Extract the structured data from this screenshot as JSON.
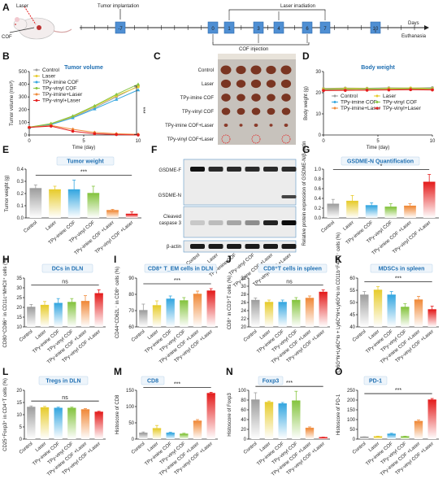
{
  "colors": {
    "control": "#9e9e9e",
    "laser": "#e7cc2e",
    "imine": "#36a7e0",
    "vinyl": "#86c440",
    "imine_laser": "#f08a3a",
    "vinyl_laser": "#e41d1d",
    "title_blue": "#1f6fb2"
  },
  "panels": {
    "A": {
      "label": "A",
      "mouse_text": [
        "Laser",
        "COF"
      ],
      "timeline_days": [
        "-7",
        "0",
        "1",
        "3",
        "4",
        "6",
        "7",
        "10"
      ],
      "tumor_implantation": "Tumor implantation",
      "laser_irradiation": "Laser irradiation",
      "cof_injection": "COF injection",
      "days": "Days",
      "euthanasia": "Euthanasia"
    },
    "B": {
      "label": "B"
    },
    "C": {
      "label": "C",
      "rows": [
        "Control",
        "Laser",
        "TPy-imine COF",
        "TPy-vinyl COF",
        "TPy-imine COF+Laser",
        "TPy-vinyl COF+Laser"
      ]
    },
    "D": {
      "label": "D"
    },
    "E": {
      "label": "E"
    },
    "F": {
      "label": "F",
      "bands": [
        "GSDME-F",
        "GSDME-N",
        "Cleaved caspase 3",
        "β-actin"
      ],
      "lanes": [
        "Control",
        "Laser",
        "TPy-imine COF",
        "TPy-vinyl COF",
        "TPy-imine COF +Laser",
        "TPy-vinyl COF +Laser"
      ]
    },
    "G": {
      "label": "G"
    },
    "H": {
      "label": "H"
    },
    "I": {
      "label": "I"
    },
    "J": {
      "label": "J"
    },
    "K": {
      "label": "K"
    },
    "L": {
      "label": "L"
    },
    "M": {
      "label": "M"
    },
    "N": {
      "label": "N"
    },
    "O": {
      "label": "O"
    }
  },
  "chart_data": [
    {
      "panel": "B",
      "type": "line",
      "title": "Tumor volume",
      "xlabel": "Time (day)",
      "ylabel": "Tumor volume (mm³)",
      "xlim": [
        0,
        10
      ],
      "ylim": [
        0,
        500
      ],
      "xticks": [
        "0",
        "5",
        "10"
      ],
      "yticks": [
        "0",
        "100",
        "200",
        "300",
        "400",
        "500"
      ],
      "x": [
        0,
        2,
        4,
        6,
        8,
        10
      ],
      "legend": [
        "Control",
        "Laser",
        "TPy-imine COF",
        "TPy-vinyl COF",
        "TPy-imine+Laser",
        "TPy-vinyl+Laser"
      ],
      "series": [
        {
          "name": "Control",
          "values": [
            60,
            85,
            140,
            215,
            300,
            385
          ]
        },
        {
          "name": "Laser",
          "values": [
            60,
            88,
            145,
            225,
            310,
            380
          ]
        },
        {
          "name": "TPy-imine COF",
          "values": [
            58,
            82,
            135,
            205,
            280,
            355
          ]
        },
        {
          "name": "TPy-vinyl COF",
          "values": [
            62,
            90,
            150,
            230,
            320,
            400
          ]
        },
        {
          "name": "TPy-imine+Laser",
          "values": [
            60,
            75,
            45,
            20,
            10,
            5
          ]
        },
        {
          "name": "TPy-vinyl+Laser",
          "values": [
            60,
            70,
            30,
            10,
            3,
            0
          ]
        }
      ],
      "annotation": "***"
    },
    {
      "panel": "D",
      "type": "line",
      "title": "Body weight",
      "xlabel": "Time (day)",
      "ylabel": "Body weight (g)",
      "xlim": [
        0,
        10
      ],
      "ylim": [
        0,
        30
      ],
      "xticks": [
        "0",
        "5",
        "10"
      ],
      "yticks": [
        "0",
        "10",
        "20",
        "30"
      ],
      "x": [
        0,
        2,
        4,
        6,
        8,
        10
      ],
      "legend": [
        "Control",
        "Laser",
        "TPy-imine COF",
        "TPy-vinyl COF",
        "TPy-imine+Laser",
        "TPy-vinyl+Laser"
      ],
      "series": [
        {
          "name": "Control",
          "values": [
            22,
            22.2,
            22.1,
            22.3,
            22.2,
            22.4
          ]
        },
        {
          "name": "Laser",
          "values": [
            21.8,
            22,
            22,
            22.1,
            22.2,
            22.1
          ]
        },
        {
          "name": "TPy-imine COF",
          "values": [
            21.5,
            21.7,
            21.8,
            21.9,
            21.8,
            22
          ]
        },
        {
          "name": "TPy-vinyl COF",
          "values": [
            21.7,
            21.8,
            21.7,
            21.9,
            22,
            21.9
          ]
        },
        {
          "name": "TPy-imine+Laser",
          "values": [
            21.2,
            21.3,
            21.2,
            21.5,
            21.6,
            21.5
          ]
        },
        {
          "name": "TPy-vinyl+Laser",
          "values": [
            21,
            21.1,
            21.2,
            21.3,
            21.4,
            21.3
          ]
        }
      ]
    },
    {
      "panel": "E",
      "type": "bar",
      "title": "Tumor weight",
      "ylabel": "Tumor weight (g)",
      "categories": [
        "Control",
        "Laser",
        "TPy-imine COF",
        "TPy-vinyl COF",
        "TPy-imine COF +Laser",
        "TPy-vinyl COF +Laser"
      ],
      "values": [
        0.24,
        0.23,
        0.23,
        0.2,
        0.06,
        0.03
      ],
      "errors": [
        0.03,
        0.03,
        0.08,
        0.06,
        0.01,
        0.02
      ],
      "ylim": [
        0,
        0.4
      ],
      "yticks": [
        "0.0",
        "0.1",
        "0.2",
        "0.3",
        "0.4"
      ],
      "annotation": "***"
    },
    {
      "panel": "G",
      "type": "bar",
      "title": "GSDME-N Quantification",
      "ylabel": "Relative protein expression of GSDME-N/β-actin",
      "categories": [
        "Control",
        "Laser",
        "TPy-imine COF",
        "TPy-vinyl COF",
        "TPy-imine COF +Laser",
        "TPy-vinyl COF +Laser"
      ],
      "values": [
        0.28,
        0.34,
        0.25,
        0.22,
        0.24,
        0.73
      ],
      "errors": [
        0.1,
        0.12,
        0.06,
        0.07,
        0.05,
        0.16
      ],
      "ylim": [
        0,
        1.0
      ],
      "yticks": [
        "0.0",
        "0.2",
        "0.4",
        "0.6",
        "0.8",
        "1.0"
      ],
      "annotation": "*"
    },
    {
      "panel": "H",
      "type": "bar",
      "title": "DCs in DLN",
      "ylabel": "CD80⁺CD86⁺ in CD11c⁺MHCII⁺ cells (%)",
      "categories": [
        "Control",
        "Laser",
        "TPy-imine COF",
        "TPy-vinyl COF",
        "TPy-imine COF +Laser",
        "TPy-vinyl COF +Laser"
      ],
      "values": [
        20,
        21,
        22,
        22.5,
        23,
        27
      ],
      "errors": [
        1.5,
        2,
        2.5,
        2,
        3,
        2
      ],
      "ylim": [
        10,
        35
      ],
      "yticks": [
        "10",
        "15",
        "20",
        "25",
        "30",
        "35"
      ],
      "annotation": "ns"
    },
    {
      "panel": "I",
      "type": "bar",
      "title": "CD8⁺ T_EM cells in DLN",
      "ylabel": "CD44⁺CD62L⁻ in CD8⁺ cells (%)",
      "categories": [
        "Control",
        "Laser",
        "TPy-imine COF",
        "TPy-vinyl COF",
        "TPy-imine COF +Laser",
        "TPy-vinyl COF +Laser"
      ],
      "values": [
        70,
        73,
        77,
        76,
        80,
        82
      ],
      "errors": [
        4,
        3,
        2,
        2,
        2,
        1.5
      ],
      "ylim": [
        60,
        90
      ],
      "yticks": [
        "60",
        "70",
        "80",
        "90"
      ],
      "annotation": "***"
    },
    {
      "panel": "J",
      "type": "bar",
      "title": "CD8⁺T cells in spleen",
      "ylabel": "CD8⁺ in CD3⁺T cells (%)",
      "categories": [
        "Control",
        "Laser",
        "TPy-imine COF",
        "TPy-vinyl COF",
        "TPy-imine COF +Laser",
        "TPy-vinyl COF +Laser"
      ],
      "values": [
        26.5,
        26,
        26,
        26.5,
        27,
        28.5
      ],
      "errors": [
        0.6,
        0.6,
        0.6,
        0.7,
        0.6,
        0.6
      ],
      "ylim": [
        20,
        32
      ],
      "yticks": [
        "20",
        "22",
        "24",
        "26",
        "28",
        "30",
        "32"
      ],
      "annotation": "ns"
    },
    {
      "panel": "K",
      "type": "bar",
      "title": "MDSCs in spleen",
      "ylabel": "Ly6G^hi+Ly6C^lo + Ly6C^hi+Ly6G^lo in CD11b⁺F4/80⁻ cells (%)",
      "categories": [
        "Control",
        "Laser",
        "TPy-imine COF",
        "TPy-vinyl COF",
        "TPy-imine COF +Laser",
        "TPy-vinyl COF +Laser"
      ],
      "values": [
        53,
        55,
        53,
        48,
        51,
        47
      ],
      "errors": [
        1.5,
        1.5,
        1.5,
        1.5,
        1.5,
        1.5
      ],
      "ylim": [
        40,
        60
      ],
      "yticks": [
        "40",
        "45",
        "50",
        "55",
        "60"
      ],
      "annotation": "***"
    },
    {
      "panel": "L",
      "type": "bar",
      "title": "Tregs in DLN",
      "ylabel": "CD25⁺Foxp3⁺ in CD4⁺T cells (%)",
      "categories": [
        "Control",
        "Laser",
        "TPy-imine COF",
        "TPy-vinyl COF",
        "TPy-imine COF +Laser",
        "TPy-vinyl COF +Laser"
      ],
      "values": [
        13,
        12.8,
        12.6,
        12.6,
        12,
        11
      ],
      "errors": [
        0.6,
        0.6,
        0.5,
        0.5,
        0.5,
        0.4
      ],
      "ylim": [
        0,
        20
      ],
      "yticks": [
        "0",
        "5",
        "10",
        "15",
        "20"
      ],
      "annotation": "ns"
    },
    {
      "panel": "M",
      "type": "bar",
      "title": "CD8",
      "ylabel": "Histoscore of CD8",
      "categories": [
        "Control",
        "Laser",
        "TPy-imine COF",
        "TPy-vinyl COF",
        "TPy-imine COF +Laser",
        "TPy-vinyl COF +Laser"
      ],
      "values": [
        18,
        32,
        18,
        15,
        55,
        140
      ],
      "errors": [
        4,
        10,
        3,
        3,
        5,
        4
      ],
      "ylim": [
        0,
        150
      ],
      "yticks": [
        "0",
        "50",
        "100",
        "150"
      ],
      "annotation": "***"
    },
    {
      "panel": "N",
      "type": "bar",
      "title": "Foxp3",
      "ylabel": "Histoscore of Foxp3",
      "categories": [
        "Control",
        "Laser",
        "TPy-imine COF",
        "TPy-vinyl COF",
        "TPy-imine COF +Laser",
        "TPy-vinyl COF +Laser"
      ],
      "values": [
        80,
        75,
        72,
        78,
        22,
        3
      ],
      "errors": [
        15,
        3,
        3,
        20,
        3,
        1
      ],
      "ylim": [
        0,
        100
      ],
      "yticks": [
        "0",
        "20",
        "40",
        "60",
        "80",
        "100"
      ],
      "annotation": "***"
    },
    {
      "panel": "O",
      "type": "bar",
      "title": "PD-1",
      "ylabel": "Histoscore of PD-1",
      "categories": [
        "Control",
        "Laser",
        "TPy-imine COF",
        "TPy-vinyl COF",
        "TPy-imine COF +Laser",
        "TPy-vinyl COF +Laser"
      ],
      "values": [
        10,
        12,
        25,
        12,
        90,
        200
      ],
      "errors": [
        2,
        3,
        5,
        3,
        8,
        8
      ],
      "ylim": [
        0,
        250
      ],
      "yticks": [
        "0",
        "50",
        "100",
        "150",
        "200",
        "250"
      ],
      "annotation": "***"
    }
  ]
}
